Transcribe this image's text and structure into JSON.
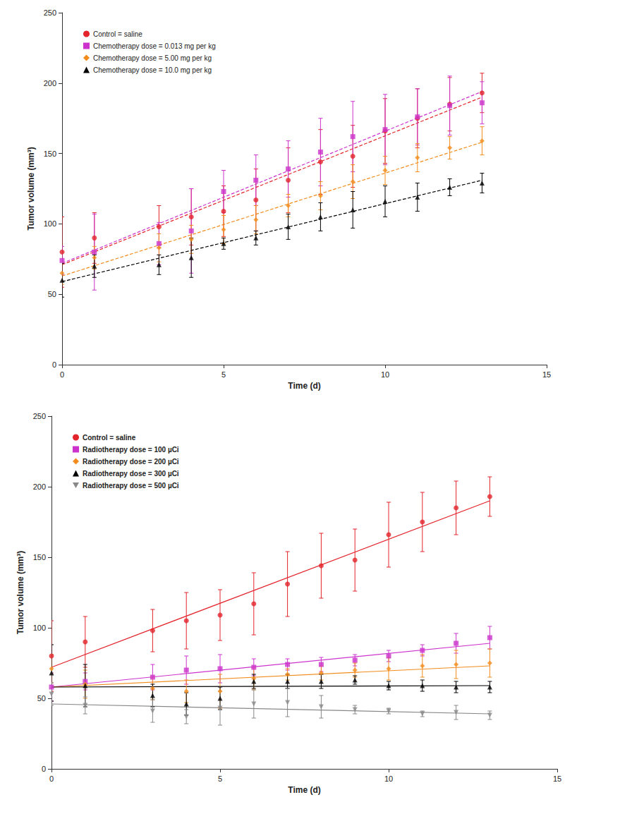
{
  "chart_data": [
    {
      "type": "scatter",
      "x_label": "Time (d)",
      "y_label": "Tumor volume (mm³)",
      "xlim": [
        0,
        15
      ],
      "xticks": [
        0,
        5,
        10,
        15
      ],
      "ylim": [
        0,
        250
      ],
      "yticks": [
        0,
        50,
        100,
        150,
        200,
        250
      ],
      "grid": false,
      "legend": "upper left",
      "line_style": "dashed",
      "x": [
        0,
        1,
        3,
        4,
        5,
        6,
        7,
        8,
        9,
        10,
        11,
        12,
        13
      ],
      "series": [
        {
          "name": "Control = saline",
          "color": "#e3242b",
          "marker": "circle",
          "values": [
            80,
            90,
            98,
            105,
            109,
            117,
            131,
            144,
            148,
            166,
            175,
            185,
            193
          ],
          "errors": [
            25,
            18,
            15,
            20,
            18,
            22,
            23,
            23,
            22,
            23,
            21,
            19,
            14
          ],
          "trend": {
            "x": [
              0,
              13
            ],
            "y": [
              71,
              190
            ]
          }
        },
        {
          "name": "Chemotherapy dose = 0.013 mg per kg",
          "color": "#cc33cc",
          "marker": "square",
          "values": [
            74,
            80,
            86,
            95,
            123,
            131,
            139,
            151,
            162,
            167,
            176,
            184,
            186
          ],
          "errors": [
            10,
            27,
            15,
            30,
            15,
            18,
            20,
            24,
            25,
            25,
            20,
            21,
            15
          ],
          "trend": {
            "x": [
              0,
              13
            ],
            "y": [
              72,
              194
            ]
          }
        },
        {
          "name": "Chemotherapy dose = 5.00 mg per kg",
          "color": "#f28c1c",
          "marker": "diamond",
          "values": [
            65,
            76,
            83,
            89,
            96,
            103,
            113,
            120,
            130,
            138,
            147,
            154,
            159
          ],
          "errors": [
            8,
            8,
            10,
            10,
            10,
            10,
            8,
            10,
            12,
            10,
            10,
            8,
            10
          ],
          "trend": {
            "x": [
              0,
              13
            ],
            "y": [
              63,
              158
            ]
          }
        },
        {
          "name": "Chemotherapy dose = 10.0 mg per kg",
          "color": "#000000",
          "marker": "triangle",
          "values": [
            60,
            70,
            71,
            76,
            86,
            90,
            98,
            105,
            110,
            116,
            119,
            126,
            129
          ],
          "errors": [
            12,
            8,
            7,
            14,
            4,
            5,
            9,
            10,
            13,
            11,
            10,
            6,
            7
          ],
          "trend": {
            "x": [
              0,
              13
            ],
            "y": [
              59,
              131
            ]
          }
        }
      ]
    },
    {
      "type": "scatter",
      "x_label": "Time (d)",
      "y_label": "Tumor volume (mm³)",
      "xlim": [
        0,
        15
      ],
      "xticks": [
        0,
        5,
        10,
        15
      ],
      "ylim": [
        0,
        250
      ],
      "yticks": [
        0,
        50,
        100,
        150,
        200,
        250
      ],
      "grid": false,
      "legend": "upper left",
      "line_style": "solid",
      "x": [
        0,
        1,
        3,
        4,
        5,
        6,
        7,
        8,
        9,
        10,
        11,
        12,
        13
      ],
      "series": [
        {
          "name": "Control = saline",
          "color": "#e3242b",
          "marker": "circle",
          "values": [
            80,
            90,
            98,
            105,
            109,
            117,
            131,
            144,
            148,
            166,
            175,
            185,
            193
          ],
          "errors": [
            25,
            18,
            15,
            20,
            18,
            22,
            23,
            23,
            22,
            23,
            21,
            19,
            14
          ],
          "trend": {
            "x": [
              0,
              13
            ],
            "y": [
              72,
              190
            ]
          }
        },
        {
          "name": "Radiotherapy dose = 100 µCi",
          "color": "#cc33cc",
          "marker": "square",
          "values": [
            58,
            62,
            65,
            70,
            71,
            72,
            74,
            74,
            77,
            80,
            84,
            89,
            93
          ],
          "errors": [
            10,
            6,
            9,
            10,
            10,
            6,
            4,
            5,
            4,
            4,
            4,
            7,
            8
          ],
          "trend": {
            "x": [
              0,
              13
            ],
            "y": [
              58,
              89
            ]
          }
        },
        {
          "name": "Radiotherapy dose = 200 µCi",
          "color": "#f28c1c",
          "marker": "diamond",
          "values": [
            71,
            60,
            57,
            55,
            55,
            64,
            67,
            68,
            70,
            71,
            73,
            74,
            75
          ],
          "errors": [
            10,
            10,
            8,
            8,
            12,
            8,
            4,
            5,
            5,
            8,
            8,
            10,
            10
          ],
          "trend": {
            "x": [
              0,
              13
            ],
            "y": [
              58,
              73
            ]
          }
        },
        {
          "name": "Radiotherapy dose = 300 µCi",
          "color": "#000000",
          "marker": "triangle",
          "values": [
            68,
            59,
            52,
            46,
            50,
            62,
            62,
            62,
            63,
            59,
            59,
            58,
            58
          ],
          "errors": [
            20,
            15,
            8,
            8,
            8,
            5,
            5,
            5,
            3,
            3,
            4,
            4,
            4
          ],
          "trend": {
            "x": [
              0,
              13
            ],
            "y": [
              58,
              59
            ]
          }
        },
        {
          "name": "Radiotherapy dose = 500 µCi",
          "color": "#888888",
          "marker": "triangle-down",
          "values": [
            53,
            45,
            41,
            37,
            43,
            46,
            47,
            44,
            42,
            41,
            39,
            40,
            38
          ],
          "errors": [
            8,
            6,
            8,
            5,
            12,
            10,
            10,
            8,
            3,
            2,
            2,
            5,
            3
          ],
          "trend": {
            "x": [
              0,
              13
            ],
            "y": [
              46,
              39
            ]
          }
        }
      ]
    }
  ]
}
